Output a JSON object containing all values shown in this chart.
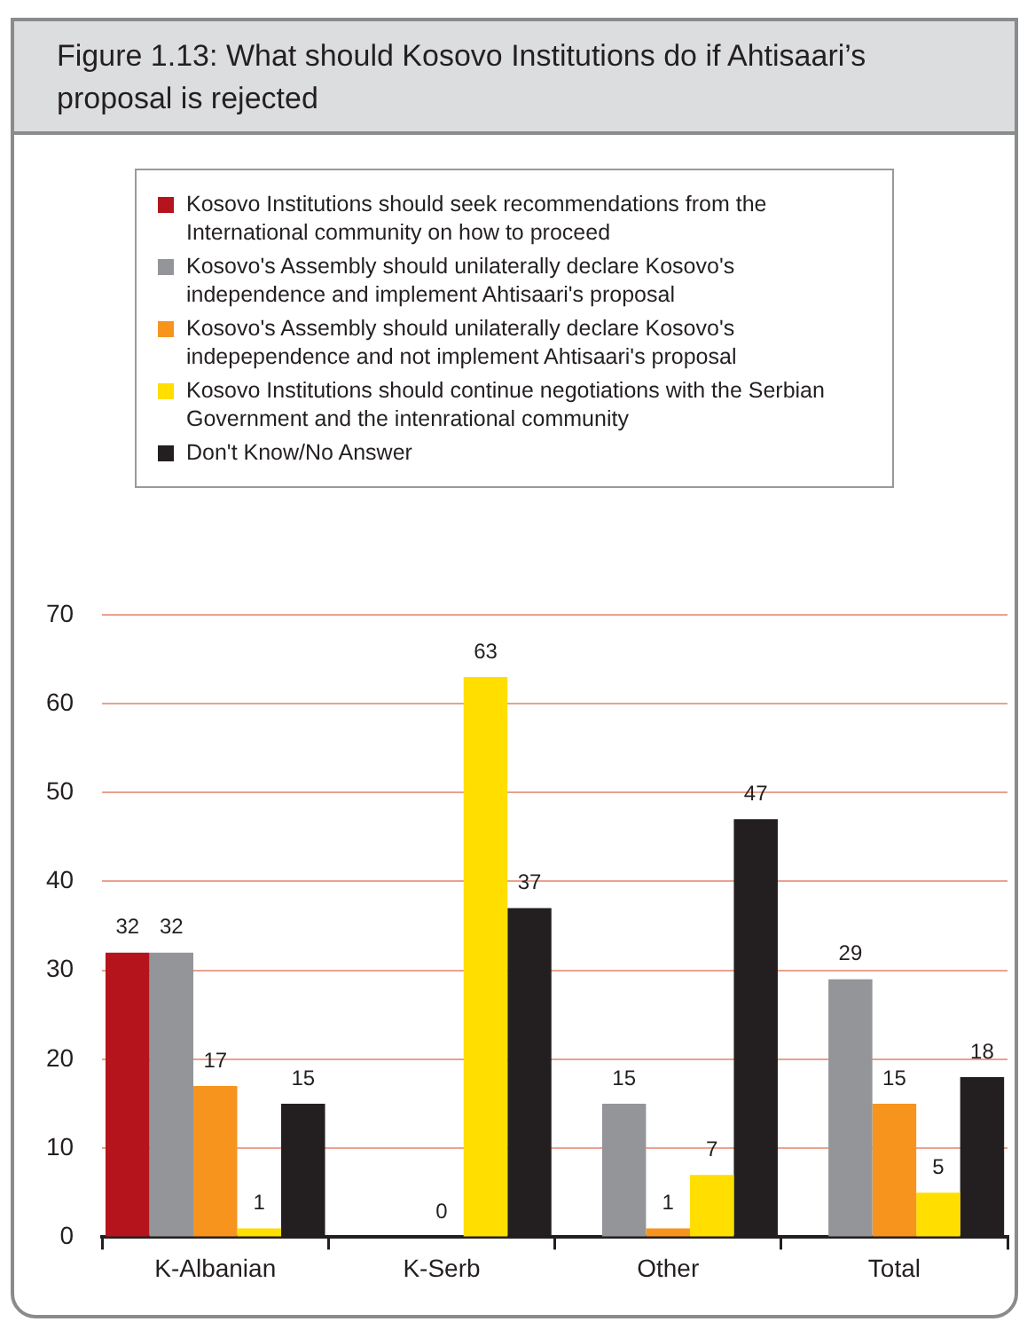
{
  "chart_data": {
    "type": "bar",
    "title": "Figure 1.13: What should Kosovo Institutions do if Ahtisaari’s proposal is rejected",
    "categories": [
      "K-Albanian",
      "K-Serb",
      "Other",
      "Total"
    ],
    "series": [
      {
        "name": "Kosovo Institutions should seek recommendations from the International community on how to proceed",
        "color": "#b5141c",
        "values": [
          32,
          null,
          null,
          null
        ]
      },
      {
        "name": "Kosovo's Assembly should unilaterally declare Kosovo's independence and implement Ahtisaari's proposal",
        "color": "#939598",
        "values": [
          32,
          null,
          15,
          29
        ]
      },
      {
        "name": "Kosovo's Assembly should unilaterally declare Kosovo's indepependence and not implement Ahtisaari's proposal",
        "color": "#f7941d",
        "values": [
          17,
          0,
          1,
          15
        ]
      },
      {
        "name": "Kosovo Institutions should continue negotiations with the Serbian Government and the intenrational community",
        "color": "#ffde00",
        "values": [
          1,
          63,
          7,
          5
        ]
      },
      {
        "name": "Don't Know/No Answer",
        "color": "#231f20",
        "values": [
          15,
          37,
          47,
          18
        ]
      }
    ],
    "ylim": [
      0,
      70
    ],
    "yticks": [
      0,
      10,
      20,
      30,
      40,
      50,
      60,
      70
    ],
    "grid": "y",
    "legend": "top",
    "data_labels": true
  }
}
